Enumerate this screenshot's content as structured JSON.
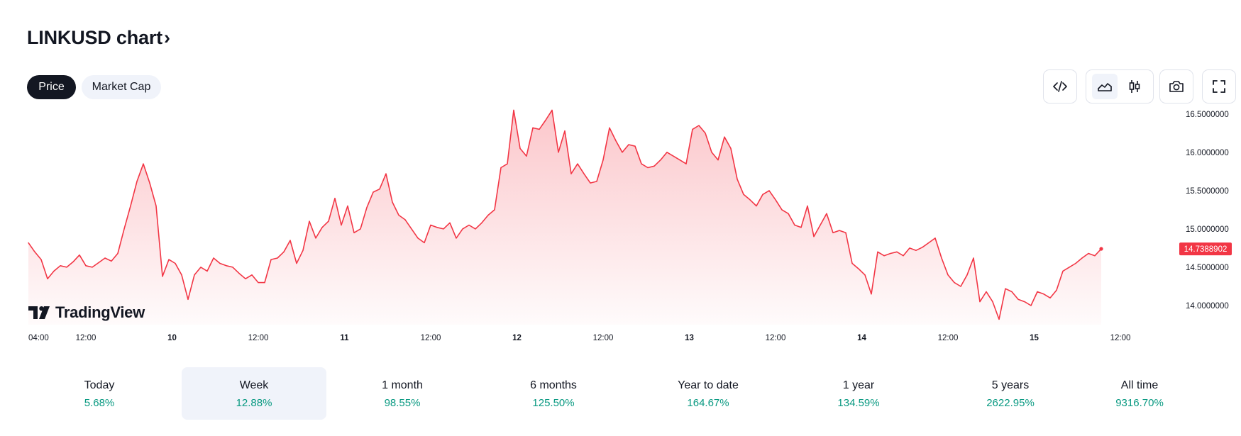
{
  "header": {
    "title": "LINKUSD chart",
    "chevron": "›"
  },
  "tabs": [
    {
      "label": "Price",
      "active": true
    },
    {
      "label": "Market Cap",
      "active": false
    }
  ],
  "toolbar": {
    "icons": [
      "code-embed-icon",
      "area-chart-icon",
      "candlestick-icon",
      "camera-icon",
      "fullscreen-icon"
    ]
  },
  "watermark": {
    "text": "TradingView"
  },
  "colors": {
    "line": "#f23645",
    "positive": "#089981",
    "price_label_bg": "#f23645",
    "dark": "#131722"
  },
  "chart_data": {
    "type": "area",
    "symbol": "LINKUSD",
    "x_ticks": [
      "04:00",
      "12:00",
      "10",
      "12:00",
      "11",
      "12:00",
      "12",
      "12:00",
      "13",
      "12:00",
      "14",
      "12:00",
      "15",
      "12:00"
    ],
    "y_ticks": [
      "16.5000000",
      "16.0000000",
      "15.5000000",
      "15.0000000",
      "14.5000000",
      "14.0000000"
    ],
    "ylim": [
      13.75,
      16.6
    ],
    "last_price": 14.7388902,
    "last_price_label": "14.7388902",
    "x_range": [
      0,
      180
    ],
    "x_tick_positions": [
      0,
      9,
      22.5,
      36,
      49.5,
      63,
      76.5,
      90,
      103.5,
      117,
      130.5,
      144,
      157.5,
      171
    ],
    "values": [
      [
        0,
        14.82
      ],
      [
        1,
        14.7
      ],
      [
        2,
        14.6
      ],
      [
        3,
        14.35
      ],
      [
        4,
        14.45
      ],
      [
        5,
        14.52
      ],
      [
        6,
        14.5
      ],
      [
        7,
        14.57
      ],
      [
        8,
        14.66
      ],
      [
        9,
        14.52
      ],
      [
        10,
        14.5
      ],
      [
        11,
        14.56
      ],
      [
        12,
        14.62
      ],
      [
        13,
        14.58
      ],
      [
        14,
        14.68
      ],
      [
        15,
        15.0
      ],
      [
        16,
        15.3
      ],
      [
        17,
        15.62
      ],
      [
        18,
        15.85
      ],
      [
        19,
        15.6
      ],
      [
        20,
        15.3
      ],
      [
        21,
        14.38
      ],
      [
        22,
        14.6
      ],
      [
        23,
        14.55
      ],
      [
        24,
        14.4
      ],
      [
        25,
        14.08
      ],
      [
        26,
        14.4
      ],
      [
        27,
        14.5
      ],
      [
        28,
        14.45
      ],
      [
        29,
        14.62
      ],
      [
        30,
        14.55
      ],
      [
        31,
        14.52
      ],
      [
        32,
        14.5
      ],
      [
        33,
        14.42
      ],
      [
        34,
        14.35
      ],
      [
        35,
        14.4
      ],
      [
        36,
        14.3
      ],
      [
        37,
        14.3
      ],
      [
        38,
        14.6
      ],
      [
        39,
        14.62
      ],
      [
        40,
        14.7
      ],
      [
        41,
        14.85
      ],
      [
        42,
        14.55
      ],
      [
        43,
        14.72
      ],
      [
        44,
        15.1
      ],
      [
        45,
        14.88
      ],
      [
        46,
        15.02
      ],
      [
        47,
        15.1
      ],
      [
        48,
        15.4
      ],
      [
        49,
        15.05
      ],
      [
        50,
        15.3
      ],
      [
        51,
        14.95
      ],
      [
        52,
        15.0
      ],
      [
        53,
        15.28
      ],
      [
        54,
        15.48
      ],
      [
        55,
        15.52
      ],
      [
        56,
        15.72
      ],
      [
        57,
        15.35
      ],
      [
        58,
        15.18
      ],
      [
        59,
        15.12
      ],
      [
        60,
        15.0
      ],
      [
        61,
        14.88
      ],
      [
        62,
        14.82
      ],
      [
        63,
        15.05
      ],
      [
        64,
        15.02
      ],
      [
        65,
        15.0
      ],
      [
        66,
        15.08
      ],
      [
        67,
        14.88
      ],
      [
        68,
        15.0
      ],
      [
        69,
        15.05
      ],
      [
        70,
        15.0
      ],
      [
        71,
        15.08
      ],
      [
        72,
        15.18
      ],
      [
        73,
        15.25
      ],
      [
        74,
        15.8
      ],
      [
        75,
        15.85
      ],
      [
        76,
        16.55
      ],
      [
        77,
        16.05
      ],
      [
        78,
        15.95
      ],
      [
        79,
        16.32
      ],
      [
        80,
        16.3
      ],
      [
        81,
        16.42
      ],
      [
        82,
        16.55
      ],
      [
        83,
        16.0
      ],
      [
        84,
        16.28
      ],
      [
        85,
        15.72
      ],
      [
        86,
        15.85
      ],
      [
        87,
        15.72
      ],
      [
        88,
        15.6
      ],
      [
        89,
        15.62
      ],
      [
        90,
        15.9
      ],
      [
        91,
        16.32
      ],
      [
        92,
        16.15
      ],
      [
        93,
        16.0
      ],
      [
        94,
        16.1
      ],
      [
        95,
        16.08
      ],
      [
        96,
        15.85
      ],
      [
        97,
        15.8
      ],
      [
        98,
        15.82
      ],
      [
        99,
        15.9
      ],
      [
        100,
        16.0
      ],
      [
        101,
        15.95
      ],
      [
        102,
        15.9
      ],
      [
        103,
        15.85
      ],
      [
        104,
        16.3
      ],
      [
        105,
        16.35
      ],
      [
        106,
        16.25
      ],
      [
        107,
        16.0
      ],
      [
        108,
        15.9
      ],
      [
        109,
        16.2
      ],
      [
        110,
        16.05
      ],
      [
        111,
        15.65
      ],
      [
        112,
        15.45
      ],
      [
        113,
        15.38
      ],
      [
        114,
        15.3
      ],
      [
        115,
        15.45
      ],
      [
        116,
        15.5
      ],
      [
        117,
        15.38
      ],
      [
        118,
        15.25
      ],
      [
        119,
        15.2
      ],
      [
        120,
        15.05
      ],
      [
        121,
        15.02
      ],
      [
        122,
        15.3
      ],
      [
        123,
        14.9
      ],
      [
        124,
        15.05
      ],
      [
        125,
        15.2
      ],
      [
        126,
        14.95
      ],
      [
        127,
        14.98
      ],
      [
        128,
        14.95
      ],
      [
        129,
        14.55
      ],
      [
        130,
        14.48
      ],
      [
        131,
        14.4
      ],
      [
        132,
        14.15
      ],
      [
        133,
        14.7
      ],
      [
        134,
        14.65
      ],
      [
        135,
        14.68
      ],
      [
        136,
        14.7
      ],
      [
        137,
        14.65
      ],
      [
        138,
        14.75
      ],
      [
        139,
        14.72
      ],
      [
        140,
        14.76
      ],
      [
        141,
        14.82
      ],
      [
        142,
        14.88
      ],
      [
        143,
        14.62
      ],
      [
        144,
        14.4
      ],
      [
        145,
        14.3
      ],
      [
        146,
        14.25
      ],
      [
        147,
        14.4
      ],
      [
        148,
        14.62
      ],
      [
        149,
        14.05
      ],
      [
        150,
        14.18
      ],
      [
        151,
        14.05
      ],
      [
        152,
        13.82
      ],
      [
        153,
        14.22
      ],
      [
        154,
        14.18
      ],
      [
        155,
        14.08
      ],
      [
        156,
        14.05
      ],
      [
        157,
        14.0
      ],
      [
        158,
        14.18
      ],
      [
        159,
        14.15
      ],
      [
        160,
        14.1
      ],
      [
        161,
        14.2
      ],
      [
        162,
        14.45
      ],
      [
        163,
        14.5
      ],
      [
        164,
        14.55
      ],
      [
        165,
        14.62
      ],
      [
        166,
        14.68
      ],
      [
        167,
        14.65
      ],
      [
        168,
        14.74
      ]
    ]
  },
  "periods": [
    {
      "label": "Today",
      "change": "5.68%",
      "selected": false
    },
    {
      "label": "Week",
      "change": "12.88%",
      "selected": true
    },
    {
      "label": "1 month",
      "change": "98.55%",
      "selected": false
    },
    {
      "label": "6 months",
      "change": "125.50%",
      "selected": false
    },
    {
      "label": "Year to date",
      "change": "164.67%",
      "selected": false
    },
    {
      "label": "1 year",
      "change": "134.59%",
      "selected": false
    },
    {
      "label": "5 years",
      "change": "2622.95%",
      "selected": false
    },
    {
      "label": "All time",
      "change": "9316.70%",
      "selected": false
    }
  ]
}
